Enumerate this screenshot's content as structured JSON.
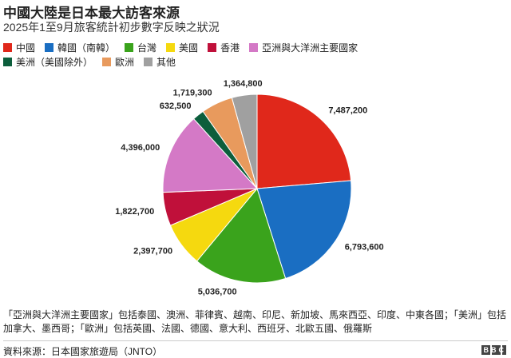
{
  "chart_data": {
    "type": "pie",
    "title": "中國大陸是日本最大訪客來源",
    "subtitle": "2025年1至9月旅客統計初步數字反映之狀況",
    "categories": [
      "中國",
      "韓國（南韓）",
      "台灣",
      "美國",
      "香港",
      "亞洲與大洋洲主要國家",
      "美洲（美國除外）",
      "歐洲",
      "其他"
    ],
    "values": [
      7487200,
      6793600,
      5036700,
      2397700,
      1822700,
      4396000,
      632500,
      1719300,
      1364800
    ],
    "value_labels": [
      "7,487,200",
      "6,793,600",
      "5,036,700",
      "2,397,700",
      "1,822,700",
      "4,396,000",
      "632,500",
      "1,719,300",
      "1,364,800"
    ],
    "colors": [
      "#e0281b",
      "#1a6ec2",
      "#3aa31c",
      "#f5d90f",
      "#c0103a",
      "#d479c6",
      "#0c5e3c",
      "#e89a5d",
      "#a0a0a0"
    ],
    "note": "「亞洲與大洋洲主要國家」包括泰國、澳洲、菲律賓、越南、印尼、新加坡、馬來西亞、印度、中東各國；「美洲」包括加拿大、墨西哥；「歐洲」包括英國、法國、德國、意大利、西班牙、北歐五國、俄羅斯",
    "source": "資料來源：日本國家旅遊局（JNTO）",
    "logo": "BBC"
  }
}
